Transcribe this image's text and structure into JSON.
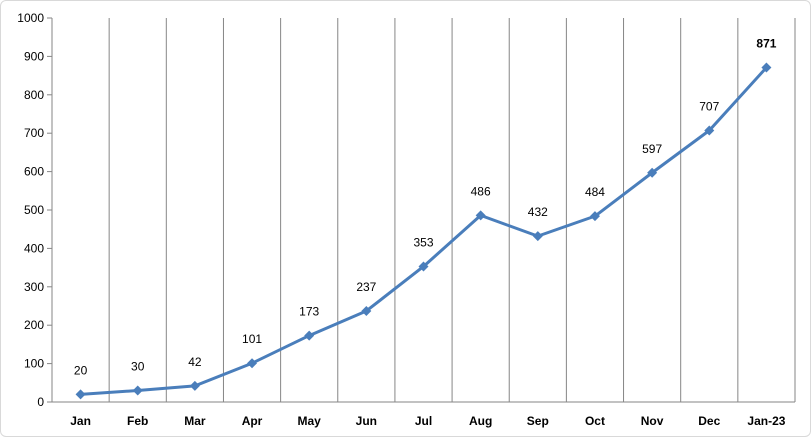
{
  "chart_data": {
    "type": "line",
    "title": "",
    "xlabel": "",
    "ylabel": "",
    "categories": [
      "Jan",
      "Feb",
      "Mar",
      "Apr",
      "May",
      "Jun",
      "Jul",
      "Aug",
      "Sep",
      "Oct",
      "Nov",
      "Dec",
      "Jan-23"
    ],
    "series": [
      {
        "values": [
          20,
          30,
          42,
          101,
          173,
          237,
          353,
          486,
          432,
          484,
          597,
          707,
          871
        ],
        "color": "#4a7ebb",
        "marker": "diamond",
        "labels": [
          "20",
          "30",
          "42",
          "101",
          "173",
          "237",
          "353",
          "486",
          "432",
          "484",
          "597",
          "707",
          "871"
        ]
      }
    ],
    "highlight": {
      "index": 12,
      "color": "#ff0000",
      "bold": true
    },
    "ylim": [
      0,
      1000
    ],
    "yticks": [
      0,
      100,
      200,
      300,
      400,
      500,
      600,
      700,
      800,
      900,
      1000
    ],
    "ytick_labels": [
      "0",
      "100",
      "200",
      "300",
      "400",
      "500",
      "600",
      "700",
      "800",
      "900",
      "1000"
    ],
    "grid": "vertical",
    "grid_color": "#868686",
    "legend": "none"
  }
}
